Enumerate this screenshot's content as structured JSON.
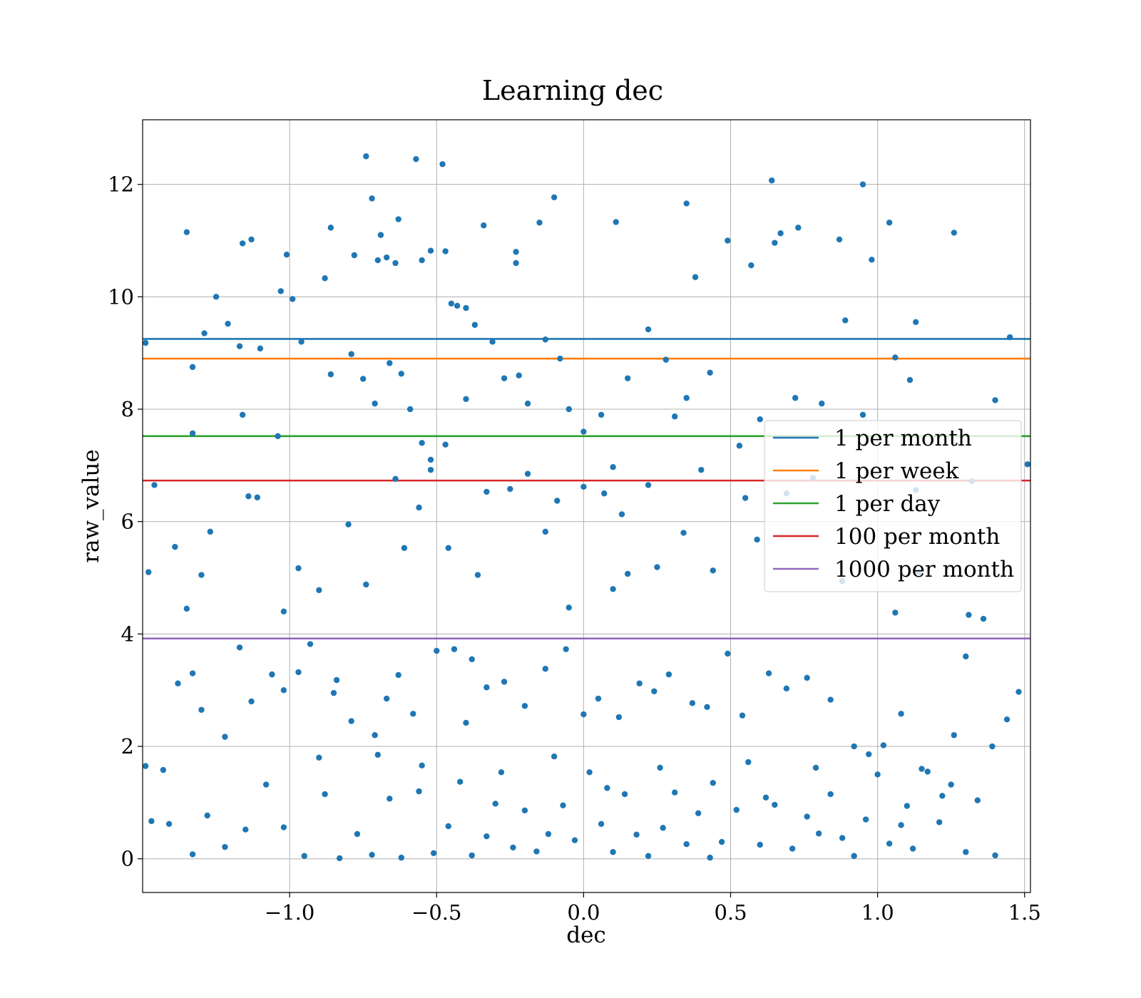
{
  "chart_data": {
    "type": "scatter",
    "title": "Learning dec",
    "xlabel": "dec",
    "ylabel": "raw_value",
    "xlim": [
      -1.5,
      1.52
    ],
    "ylim": [
      -0.6,
      13.15
    ],
    "grid": true,
    "xticks": [
      -1.0,
      -0.5,
      0.0,
      0.5,
      1.0,
      1.5
    ],
    "xtick_labels": [
      "−1.0",
      "−0.5",
      "0.0",
      "0.5",
      "1.0",
      "1.5"
    ],
    "yticks": [
      0,
      2,
      4,
      6,
      8,
      10,
      12
    ],
    "ytick_labels": [
      "0",
      "2",
      "4",
      "6",
      "8",
      "10",
      "12"
    ],
    "legend_position": "center-right",
    "point_color": "#1f77b4",
    "hlines": [
      {
        "name": "1 per month",
        "y": 9.25,
        "color": "#1f77b4"
      },
      {
        "name": "1 per week",
        "y": 8.9,
        "color": "#ff7f0e"
      },
      {
        "name": "1 per day",
        "y": 7.52,
        "color": "#2ca02c"
      },
      {
        "name": "100 per month",
        "y": 6.73,
        "color": "#d62728"
      },
      {
        "name": "1000 per month",
        "y": 3.92,
        "color": "#9467bd"
      }
    ],
    "points": [
      [
        -1.49,
        9.18
      ],
      [
        -1.46,
        6.65
      ],
      [
        -1.35,
        11.15
      ],
      [
        -1.33,
        8.75
      ],
      [
        -1.29,
        9.35
      ],
      [
        -1.25,
        10.0
      ],
      [
        -1.21,
        9.52
      ],
      [
        -1.17,
        9.12
      ],
      [
        -1.16,
        10.95
      ],
      [
        -1.13,
        11.02
      ],
      [
        -1.1,
        9.08
      ],
      [
        -1.03,
        10.1
      ],
      [
        -1.01,
        10.75
      ],
      [
        -0.99,
        9.96
      ],
      [
        -0.96,
        9.2
      ],
      [
        -0.88,
        10.33
      ],
      [
        -0.86,
        11.23
      ],
      [
        -0.78,
        10.74
      ],
      [
        -0.74,
        12.5
      ],
      [
        -0.72,
        11.75
      ],
      [
        -0.7,
        10.65
      ],
      [
        -0.69,
        11.1
      ],
      [
        -0.67,
        10.7
      ],
      [
        -0.64,
        10.6
      ],
      [
        -0.63,
        11.38
      ],
      [
        -0.57,
        12.45
      ],
      [
        -0.55,
        10.65
      ],
      [
        -0.52,
        10.82
      ],
      [
        -0.48,
        12.36
      ],
      [
        -0.47,
        10.81
      ],
      [
        -0.45,
        9.88
      ],
      [
        -0.43,
        9.84
      ],
      [
        -0.4,
        9.8
      ],
      [
        -0.37,
        9.5
      ],
      [
        -0.34,
        11.27
      ],
      [
        -0.23,
        10.8
      ],
      [
        -0.23,
        10.6
      ],
      [
        -0.15,
        11.32
      ],
      [
        -0.1,
        11.77
      ],
      [
        0.11,
        11.33
      ],
      [
        0.35,
        11.66
      ],
      [
        0.38,
        10.35
      ],
      [
        0.49,
        11.0
      ],
      [
        0.57,
        10.56
      ],
      [
        0.64,
        12.07
      ],
      [
        0.65,
        10.96
      ],
      [
        0.67,
        11.13
      ],
      [
        0.73,
        11.23
      ],
      [
        0.87,
        11.02
      ],
      [
        0.95,
        12.0
      ],
      [
        0.98,
        10.66
      ],
      [
        1.04,
        11.32
      ],
      [
        1.26,
        11.14
      ],
      [
        1.45,
        9.28
      ],
      [
        1.51,
        7.02
      ],
      [
        -1.33,
        7.57
      ],
      [
        -1.16,
        7.9
      ],
      [
        -1.04,
        7.52
      ],
      [
        -0.86,
        8.62
      ],
      [
        -0.79,
        8.98
      ],
      [
        -0.75,
        8.54
      ],
      [
        -0.71,
        8.1
      ],
      [
        -0.66,
        8.82
      ],
      [
        -0.62,
        8.63
      ],
      [
        -0.59,
        8.0
      ],
      [
        -0.55,
        7.4
      ],
      [
        -0.52,
        7.1
      ],
      [
        -0.47,
        7.37
      ],
      [
        -0.4,
        8.18
      ],
      [
        -0.31,
        9.2
      ],
      [
        -0.27,
        8.55
      ],
      [
        -0.22,
        8.6
      ],
      [
        -0.19,
        8.1
      ],
      [
        -0.13,
        9.24
      ],
      [
        -0.08,
        8.9
      ],
      [
        -0.05,
        8.0
      ],
      [
        0.0,
        7.6
      ],
      [
        0.06,
        7.9
      ],
      [
        0.1,
        6.97
      ],
      [
        0.15,
        8.55
      ],
      [
        0.22,
        9.42
      ],
      [
        0.28,
        8.88
      ],
      [
        0.31,
        7.87
      ],
      [
        0.35,
        8.2
      ],
      [
        0.43,
        8.65
      ],
      [
        0.53,
        7.35
      ],
      [
        0.6,
        7.82
      ],
      [
        0.72,
        8.2
      ],
      [
        0.81,
        8.1
      ],
      [
        0.89,
        9.58
      ],
      [
        0.95,
        7.9
      ],
      [
        1.06,
        8.92
      ],
      [
        1.11,
        8.52
      ],
      [
        1.13,
        9.55
      ],
      [
        1.4,
        8.16
      ],
      [
        -1.48,
        5.1
      ],
      [
        -1.39,
        5.55
      ],
      [
        -1.35,
        4.45
      ],
      [
        -1.3,
        5.05
      ],
      [
        -1.27,
        5.82
      ],
      [
        -1.14,
        6.45
      ],
      [
        -1.11,
        6.43
      ],
      [
        -1.02,
        4.4
      ],
      [
        -0.97,
        5.17
      ],
      [
        -0.9,
        4.78
      ],
      [
        -0.8,
        5.95
      ],
      [
        -0.74,
        4.88
      ],
      [
        -0.64,
        6.76
      ],
      [
        -0.61,
        5.53
      ],
      [
        -0.56,
        6.25
      ],
      [
        -0.52,
        6.92
      ],
      [
        -0.46,
        5.53
      ],
      [
        -0.36,
        5.05
      ],
      [
        -0.33,
        6.53
      ],
      [
        -0.25,
        6.58
      ],
      [
        -0.19,
        6.85
      ],
      [
        -0.13,
        5.82
      ],
      [
        -0.09,
        6.37
      ],
      [
        -0.05,
        4.47
      ],
      [
        0.0,
        6.62
      ],
      [
        0.07,
        6.5
      ],
      [
        0.1,
        4.8
      ],
      [
        0.13,
        6.13
      ],
      [
        0.15,
        5.07
      ],
      [
        0.22,
        6.65
      ],
      [
        0.25,
        5.19
      ],
      [
        0.34,
        5.8
      ],
      [
        0.4,
        6.92
      ],
      [
        0.44,
        5.13
      ],
      [
        0.55,
        6.42
      ],
      [
        0.59,
        5.68
      ],
      [
        0.69,
        6.5
      ],
      [
        0.78,
        6.78
      ],
      [
        0.88,
        4.94
      ],
      [
        1.06,
        4.38
      ],
      [
        1.13,
        6.56
      ],
      [
        1.14,
        5.1
      ],
      [
        1.31,
        4.34
      ],
      [
        1.36,
        4.27
      ],
      [
        1.32,
        6.72
      ],
      [
        -1.49,
        1.65
      ],
      [
        -1.43,
        1.58
      ],
      [
        -1.38,
        3.12
      ],
      [
        -1.33,
        3.3
      ],
      [
        -1.3,
        2.65
      ],
      [
        -1.22,
        2.17
      ],
      [
        -1.17,
        3.76
      ],
      [
        -1.13,
        2.8
      ],
      [
        -1.06,
        3.28
      ],
      [
        -1.02,
        3.0
      ],
      [
        -0.97,
        3.32
      ],
      [
        -0.93,
        3.82
      ],
      [
        -0.84,
        3.18
      ],
      [
        -0.79,
        2.45
      ],
      [
        -0.71,
        2.2
      ],
      [
        -0.67,
        2.85
      ],
      [
        -0.63,
        3.27
      ],
      [
        -0.58,
        2.58
      ],
      [
        -0.5,
        3.7
      ],
      [
        -0.44,
        3.73
      ],
      [
        -0.38,
        3.55
      ],
      [
        -0.33,
        3.05
      ],
      [
        -0.27,
        3.15
      ],
      [
        -0.2,
        2.72
      ],
      [
        -0.13,
        3.38
      ],
      [
        -0.06,
        3.73
      ],
      [
        0.0,
        2.57
      ],
      [
        0.05,
        2.85
      ],
      [
        0.12,
        2.52
      ],
      [
        0.19,
        3.12
      ],
      [
        0.24,
        2.98
      ],
      [
        0.29,
        3.28
      ],
      [
        0.37,
        2.77
      ],
      [
        0.42,
        2.7
      ],
      [
        0.49,
        3.65
      ],
      [
        0.54,
        2.55
      ],
      [
        0.63,
        3.3
      ],
      [
        0.69,
        3.03
      ],
      [
        0.76,
        3.22
      ],
      [
        0.84,
        2.83
      ],
      [
        0.92,
        2.0
      ],
      [
        1.02,
        2.02
      ],
      [
        1.08,
        2.58
      ],
      [
        1.15,
        1.6
      ],
      [
        1.22,
        1.12
      ],
      [
        1.26,
        2.2
      ],
      [
        1.3,
        3.6
      ],
      [
        1.39,
        2.0
      ],
      [
        1.44,
        2.48
      ],
      [
        1.48,
        2.97
      ],
      [
        -1.47,
        0.67
      ],
      [
        -1.41,
        0.62
      ],
      [
        -1.33,
        0.08
      ],
      [
        -1.28,
        0.77
      ],
      [
        -1.22,
        0.21
      ],
      [
        -1.15,
        0.52
      ],
      [
        -1.08,
        1.32
      ],
      [
        -1.02,
        0.56
      ],
      [
        -0.95,
        0.05
      ],
      [
        -0.88,
        1.15
      ],
      [
        -0.83,
        0.01
      ],
      [
        -0.77,
        0.44
      ],
      [
        -0.72,
        0.07
      ],
      [
        -0.66,
        1.07
      ],
      [
        -0.62,
        0.02
      ],
      [
        -0.56,
        1.2
      ],
      [
        -0.51,
        0.1
      ],
      [
        -0.46,
        0.58
      ],
      [
        -0.42,
        1.37
      ],
      [
        -0.38,
        0.06
      ],
      [
        -0.33,
        0.4
      ],
      [
        -0.28,
        1.54
      ],
      [
        -0.24,
        0.2
      ],
      [
        -0.2,
        0.86
      ],
      [
        -0.16,
        0.13
      ],
      [
        -0.12,
        0.44
      ],
      [
        -0.07,
        0.95
      ],
      [
        -0.03,
        0.33
      ],
      [
        0.02,
        1.54
      ],
      [
        0.06,
        0.62
      ],
      [
        0.1,
        0.12
      ],
      [
        0.14,
        1.15
      ],
      [
        0.18,
        0.43
      ],
      [
        0.22,
        0.05
      ],
      [
        0.27,
        0.55
      ],
      [
        0.31,
        1.18
      ],
      [
        0.35,
        0.26
      ],
      [
        0.39,
        0.81
      ],
      [
        0.43,
        0.02
      ],
      [
        0.47,
        0.3
      ],
      [
        0.52,
        0.87
      ],
      [
        0.56,
        1.72
      ],
      [
        0.6,
        0.25
      ],
      [
        0.65,
        0.96
      ],
      [
        0.71,
        0.18
      ],
      [
        0.76,
        0.75
      ],
      [
        0.8,
        0.45
      ],
      [
        0.84,
        1.15
      ],
      [
        0.88,
        0.37
      ],
      [
        0.92,
        0.05
      ],
      [
        0.96,
        0.7
      ],
      [
        1.0,
        1.5
      ],
      [
        1.04,
        0.27
      ],
      [
        1.08,
        0.6
      ],
      [
        1.12,
        0.18
      ],
      [
        1.17,
        1.55
      ],
      [
        1.21,
        0.65
      ],
      [
        1.25,
        1.32
      ],
      [
        1.3,
        0.12
      ],
      [
        1.34,
        1.04
      ],
      [
        1.4,
        0.06
      ],
      [
        -0.9,
        1.8
      ],
      [
        -0.85,
        2.95
      ],
      [
        -0.7,
        1.85
      ],
      [
        -0.55,
        1.66
      ],
      [
        -0.4,
        2.42
      ],
      [
        -0.3,
        0.98
      ],
      [
        -0.1,
        1.82
      ],
      [
        0.08,
        1.26
      ],
      [
        0.26,
        1.62
      ],
      [
        0.44,
        1.35
      ],
      [
        0.62,
        1.09
      ],
      [
        0.79,
        1.62
      ],
      [
        0.97,
        1.86
      ],
      [
        1.1,
        0.94
      ]
    ]
  }
}
